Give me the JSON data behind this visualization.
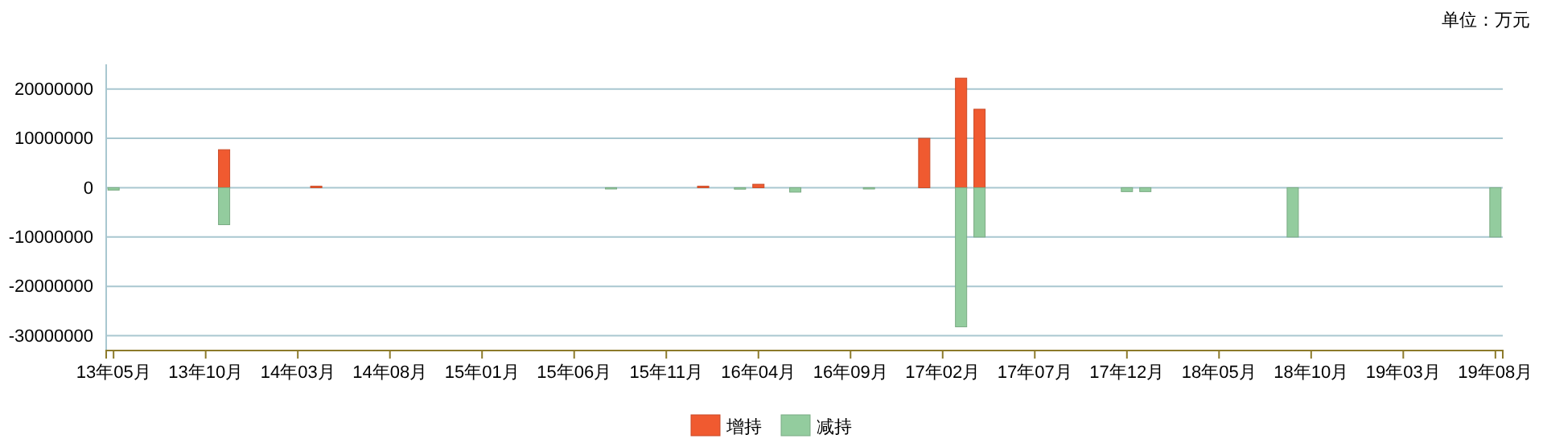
{
  "chart_data": {
    "type": "bar",
    "stacked": true,
    "categories": [
      "13年05月",
      null,
      null,
      null,
      null,
      "13年10月",
      null,
      null,
      null,
      null,
      "14年03月",
      null,
      null,
      null,
      null,
      "14年08月",
      null,
      null,
      null,
      null,
      "15年01月",
      null,
      null,
      null,
      null,
      "15年06月",
      null,
      null,
      null,
      null,
      "15年11月",
      null,
      null,
      null,
      null,
      "16年04月",
      null,
      null,
      null,
      null,
      "16年09月",
      null,
      null,
      null,
      null,
      "17年02月",
      null,
      null,
      null,
      null,
      "17年07月",
      null,
      null,
      null,
      null,
      "17年12月",
      null,
      null,
      null,
      null,
      "18年05月",
      null,
      null,
      null,
      null,
      "18年10月",
      null,
      null,
      null,
      null,
      "19年03月",
      null,
      null,
      null,
      null,
      "19年08月"
    ],
    "series": [
      {
        "name": "增持",
        "color": "#f05a30",
        "values": [
          null,
          null,
          null,
          null,
          null,
          null,
          7700000,
          null,
          null,
          null,
          null,
          300000,
          null,
          null,
          null,
          null,
          null,
          null,
          null,
          null,
          null,
          null,
          null,
          null,
          null,
          null,
          null,
          null,
          null,
          null,
          null,
          null,
          300000,
          null,
          null,
          700000,
          null,
          null,
          null,
          null,
          null,
          null,
          null,
          null,
          10000000,
          null,
          22200000,
          15900000,
          null,
          null,
          null,
          null,
          null,
          null,
          null,
          null,
          null,
          null,
          null,
          null,
          null,
          null,
          null,
          null,
          null,
          null,
          null,
          null,
          null,
          null,
          null,
          null,
          null,
          null,
          null,
          null
        ]
      },
      {
        "name": "减持",
        "color": "#93cc9e",
        "values": [
          -500000,
          null,
          null,
          null,
          null,
          null,
          -7500000,
          null,
          null,
          null,
          null,
          null,
          null,
          null,
          null,
          null,
          null,
          null,
          null,
          null,
          null,
          null,
          null,
          null,
          null,
          null,
          null,
          -200000,
          null,
          null,
          null,
          null,
          null,
          null,
          -300000,
          null,
          null,
          -900000,
          null,
          null,
          null,
          -200000,
          null,
          null,
          null,
          null,
          -28200000,
          -10000000,
          null,
          null,
          null,
          null,
          null,
          null,
          null,
          -800000,
          -800000,
          null,
          null,
          null,
          null,
          null,
          null,
          null,
          -10000000,
          null,
          null,
          null,
          null,
          null,
          null,
          null,
          null,
          null,
          null,
          -10000000
        ]
      }
    ],
    "ylim": [
      -33000000,
      25000000
    ],
    "yticks": [
      -30000000,
      -20000000,
      -10000000,
      0,
      10000000,
      20000000
    ],
    "grid": "y",
    "legend": "bottom",
    "annotations": [
      "单位：万元"
    ]
  }
}
